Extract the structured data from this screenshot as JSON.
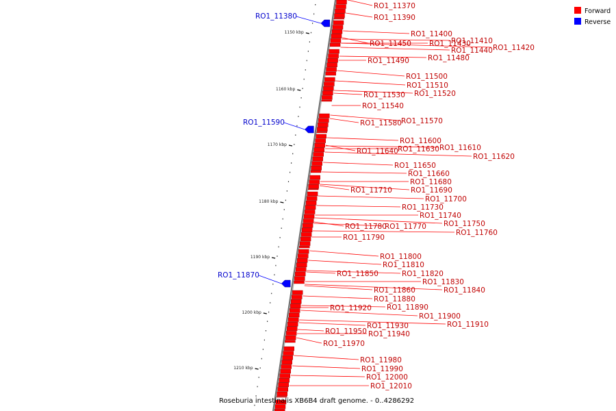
{
  "legend": {
    "forward": {
      "label": "Forward",
      "color": "#ff0000"
    },
    "reverse": {
      "label": "Reverse",
      "color": "#0000ff"
    }
  },
  "caption": "Roseburia intestinalis XB6B4 draft genome. - 0..4286292",
  "axis_ticks": [
    "1150 kbp",
    "1160 kbp",
    "1170 kbp",
    "1180 kbp",
    "1190 kbp",
    "1200 kbp",
    "1210 kbp"
  ],
  "reverse_genes": [
    "RO1_11380",
    "RO1_11590",
    "RO1_11870"
  ],
  "forward_genes": [
    "RO1_11370",
    "RO1_11390",
    "RO1_11400",
    "RO1_11410",
    "RO1_11430",
    "RO1_11450",
    "RO1_11420",
    "RO1_11440",
    "RO1_11480",
    "RO1_11490",
    "RO1_11500",
    "RO1_11510",
    "RO1_11520",
    "RO1_11530",
    "RO1_11540",
    "RO1_11570",
    "RO1_11580",
    "RO1_11600",
    "RO1_11610",
    "RO1_11630",
    "RO1_11640",
    "RO1_11620",
    "RO1_11650",
    "RO1_11660",
    "RO1_11680",
    "RO1_11690",
    "RO1_11710",
    "RO1_11700",
    "RO1_11730",
    "RO1_11740",
    "RO1_11750",
    "RO1_11780",
    "RO1_11770",
    "RO1_11760",
    "RO1_11790",
    "RO1_11800",
    "RO1_11810",
    "RO1_11820",
    "RO1_11850",
    "RO1_11830",
    "RO1_11840",
    "RO1_11860",
    "RO1_11880",
    "RO1_11890",
    "RO1_11920",
    "RO1_11900",
    "RO1_11910",
    "RO1_11930",
    "RO1_11950",
    "RO1_11940",
    "RO1_11970",
    "RO1_11980",
    "RO1_11990",
    "RO1_12000",
    "RO1_12010"
  ]
}
